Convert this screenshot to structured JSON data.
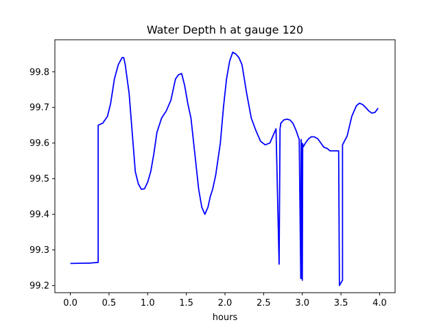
{
  "chart_data": {
    "type": "line",
    "title": "Water Depth h at gauge 120",
    "xlabel": "hours",
    "ylabel": "",
    "xlim": [
      -0.2,
      4.2
    ],
    "ylim": [
      99.18,
      99.89
    ],
    "xticks": [
      0.0,
      0.5,
      1.0,
      1.5,
      2.0,
      2.5,
      3.0,
      3.5,
      4.0
    ],
    "xtick_labels": [
      "0.0",
      "0.5",
      "1.0",
      "1.5",
      "2.0",
      "2.5",
      "3.0",
      "3.5",
      "4.0"
    ],
    "yticks": [
      99.2,
      99.3,
      99.4,
      99.5,
      99.6,
      99.7,
      99.8
    ],
    "ytick_labels": [
      "99.2",
      "99.3",
      "99.4",
      "99.5",
      "99.6",
      "99.7",
      "99.8"
    ],
    "grid": false,
    "series": [
      {
        "color": "#0000ff",
        "x": [
          0.0,
          0.25,
          0.36,
          0.36,
          0.42,
          0.48,
          0.52,
          0.57,
          0.62,
          0.67,
          0.69,
          0.71,
          0.76,
          0.8,
          0.84,
          0.88,
          0.92,
          0.96,
          1.0,
          1.04,
          1.08,
          1.12,
          1.18,
          1.24,
          1.3,
          1.36,
          1.4,
          1.44,
          1.48,
          1.52,
          1.56,
          1.62,
          1.66,
          1.7,
          1.74,
          1.78,
          1.81,
          1.84,
          1.88,
          1.94,
          1.98,
          2.02,
          2.06,
          2.1,
          2.14,
          2.18,
          2.22,
          2.28,
          2.34,
          2.4,
          2.46,
          2.52,
          2.58,
          2.63,
          2.66,
          2.7,
          2.712,
          2.715,
          2.72,
          2.72,
          2.76,
          2.8,
          2.84,
          2.88,
          2.92,
          2.96,
          2.98,
          2.985,
          2.99,
          2.995,
          3.0,
          3.005,
          3.01,
          3.015,
          3.02,
          3.04,
          3.08,
          3.12,
          3.16,
          3.2,
          3.24,
          3.28,
          3.32,
          3.36,
          3.4,
          3.44,
          3.47,
          3.48,
          3.48,
          3.52,
          3.52,
          3.58,
          3.64,
          3.7,
          3.74,
          3.78,
          3.82,
          3.86,
          3.9,
          3.94,
          3.98
        ],
        "y": [
          99.262,
          99.263,
          99.265,
          99.65,
          99.656,
          99.675,
          99.71,
          99.78,
          99.82,
          99.84,
          99.84,
          99.82,
          99.74,
          99.63,
          99.52,
          99.485,
          99.47,
          99.472,
          99.49,
          99.52,
          99.57,
          99.63,
          99.67,
          99.69,
          99.72,
          99.78,
          99.792,
          99.795,
          99.76,
          99.71,
          99.67,
          99.55,
          99.47,
          99.42,
          99.4,
          99.42,
          99.45,
          99.47,
          99.51,
          99.6,
          99.7,
          99.78,
          99.83,
          99.855,
          99.85,
          99.84,
          99.82,
          99.74,
          99.67,
          99.635,
          99.605,
          99.595,
          99.6,
          99.625,
          99.64,
          99.26,
          99.64,
          99.645,
          99.65,
          99.655,
          99.665,
          99.667,
          99.665,
          99.655,
          99.635,
          99.61,
          99.22,
          99.61,
          99.22,
          99.6,
          99.215,
          99.598,
          99.59,
          99.59,
          99.592,
          99.6,
          99.612,
          99.618,
          99.617,
          99.612,
          99.6,
          99.588,
          99.585,
          99.578,
          99.578,
          99.578,
          99.578,
          99.2,
          99.2,
          99.215,
          99.595,
          99.62,
          99.675,
          99.705,
          99.712,
          99.708,
          99.7,
          99.69,
          99.684,
          99.686,
          99.698
        ]
      }
    ]
  }
}
